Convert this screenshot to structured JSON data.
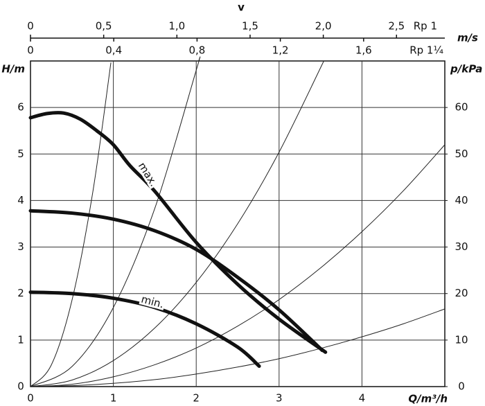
{
  "chart_data": {
    "type": "line",
    "xlabel": "Q/m³/h",
    "ylabel": "H/m",
    "y2label": "p/kPa",
    "xlim": [
      0,
      5
    ],
    "xticks": [
      0,
      1,
      2,
      3,
      4
    ],
    "ylim": [
      0,
      7
    ],
    "yticks": [
      0,
      1,
      2,
      3,
      4,
      5,
      6
    ],
    "y2lim": [
      0,
      70
    ],
    "y2ticks": [
      0,
      10,
      20,
      30,
      40,
      50,
      60
    ],
    "grid": true,
    "top_axis_title": "v",
    "top_axis_unit": "m/s",
    "top_axes": [
      {
        "label": "Rp 1",
        "lim": [
          0,
          2.83
        ],
        "ticks": [
          0,
          {
            "value": 0.5,
            "label": "0,5"
          },
          {
            "value": 1.0,
            "label": "1,0"
          },
          {
            "value": 1.5,
            "label": "1,5"
          },
          {
            "value": 2.0,
            "label": "2,0"
          },
          {
            "value": 2.5,
            "label": "2,5"
          }
        ]
      },
      {
        "label": "Rp 1¼",
        "lim": [
          0,
          1.99
        ],
        "ticks": [
          0,
          {
            "value": 0.4,
            "label": "0,4"
          },
          {
            "value": 0.8,
            "label": "0,8"
          },
          {
            "value": 1.2,
            "label": "1,2"
          },
          {
            "value": 1.6,
            "label": "1,6"
          }
        ]
      }
    ],
    "series": [
      {
        "name": "max.",
        "color": "#111111",
        "linewidth": 5,
        "x": [
          0,
          0.2,
          0.4,
          0.6,
          0.8,
          1,
          1.2,
          1.5,
          2,
          2.5,
          3,
          3.56
        ],
        "values": [
          5.78,
          5.87,
          5.88,
          5.75,
          5.5,
          5.2,
          4.75,
          4.2,
          3.1,
          2.2,
          1.45,
          0.74
        ]
      },
      {
        "color": "#111111",
        "linewidth": 5,
        "x": [
          0,
          0.5,
          1,
          1.5,
          2,
          2.5,
          3,
          3.52
        ],
        "values": [
          3.78,
          3.73,
          3.6,
          3.35,
          2.95,
          2.35,
          1.65,
          0.78
        ]
      },
      {
        "name": "min.",
        "color": "#111111",
        "linewidth": 5,
        "x": [
          0,
          0.5,
          1,
          1.5,
          2,
          2.5,
          2.76
        ],
        "values": [
          2.03,
          2.0,
          1.9,
          1.7,
          1.35,
          0.85,
          0.44
        ]
      },
      {
        "color": "#222222",
        "linewidth": 1,
        "x": [
          0,
          0.25,
          0.5,
          0.75,
          0.97
        ],
        "values": [
          0,
          0.46,
          1.85,
          4.16,
          6.96
        ]
      },
      {
        "color": "#222222",
        "linewidth": 1,
        "x": [
          0,
          0.5,
          1,
          1.5,
          2,
          2.03
        ],
        "values": [
          0,
          0.43,
          1.7,
          3.83,
          6.8,
          7
        ]
      },
      {
        "color": "#222222",
        "linewidth": 1,
        "x": [
          0,
          0.5,
          1,
          1.5,
          2,
          2.5,
          3,
          3.54
        ],
        "values": [
          0,
          0.14,
          0.56,
          1.26,
          2.24,
          3.5,
          5.04,
          7
        ]
      },
      {
        "color": "#222222",
        "linewidth": 1,
        "x": [
          0,
          0.5,
          1,
          1.5,
          2,
          2.5,
          3,
          3.5,
          4,
          4.5,
          5
        ],
        "values": [
          0,
          0.05,
          0.21,
          0.47,
          0.83,
          1.3,
          1.87,
          2.55,
          3.33,
          4.21,
          5.2
        ]
      },
      {
        "color": "#222222",
        "linewidth": 1,
        "x": [
          0,
          0.5,
          1,
          1.5,
          2,
          2.5,
          3,
          3.5,
          4,
          4.5,
          5
        ],
        "values": [
          0,
          0.02,
          0.07,
          0.15,
          0.27,
          0.42,
          0.6,
          0.82,
          1.07,
          1.35,
          1.67
        ]
      }
    ]
  }
}
